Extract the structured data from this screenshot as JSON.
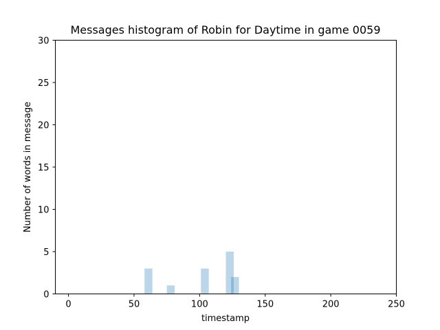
{
  "chart_data": {
    "type": "bar",
    "title": "Messages histogram of Robin for Daytime in game 0059",
    "xlabel": "timestamp",
    "ylabel": "Number of words in message",
    "xlim": [
      -10,
      250
    ],
    "ylim": [
      0,
      30
    ],
    "xticks": [
      0,
      50,
      100,
      150,
      200,
      250
    ],
    "yticks": [
      0,
      5,
      10,
      15,
      20,
      25,
      30
    ],
    "grid": false,
    "bar_color": "#1f77b4",
    "bar_opacity": 0.3,
    "bars": [
      {
        "x": 61,
        "width": 6,
        "value": 3
      },
      {
        "x": 78,
        "width": 6,
        "value": 1
      },
      {
        "x": 104,
        "width": 6,
        "value": 3
      },
      {
        "x": 123,
        "width": 6,
        "value": 5
      },
      {
        "x": 127,
        "width": 6,
        "value": 2
      }
    ]
  }
}
